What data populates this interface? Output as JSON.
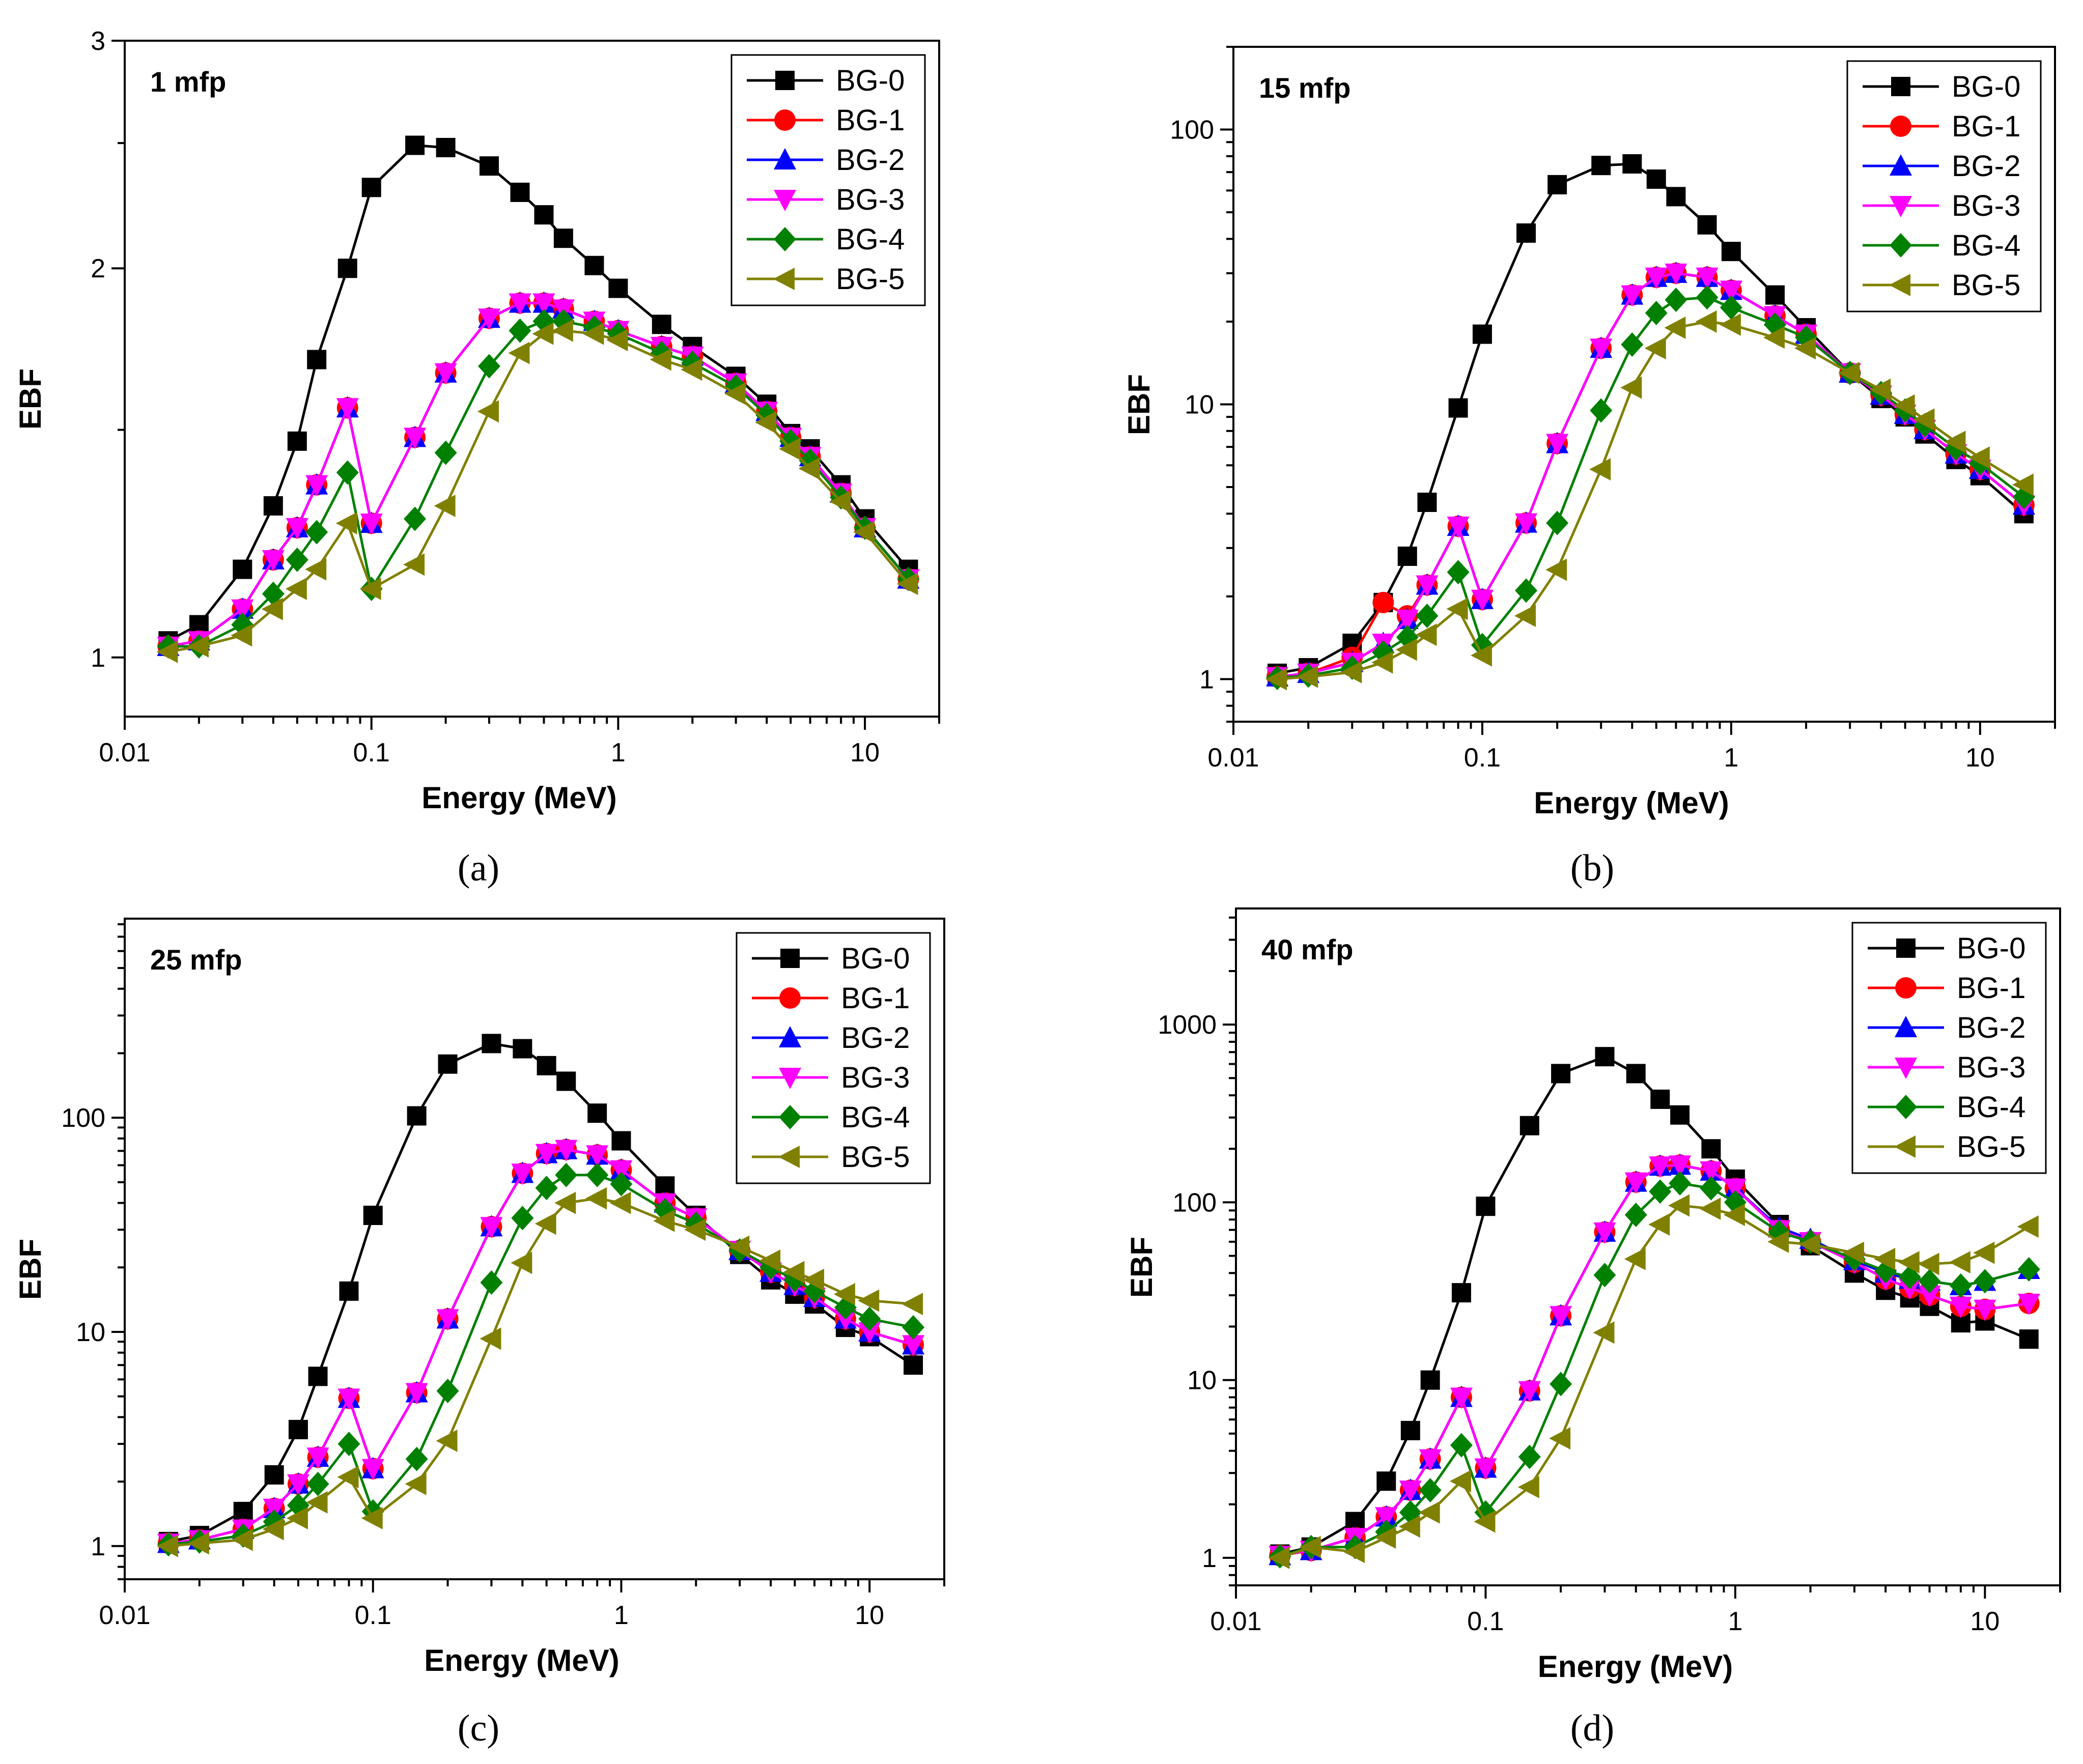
{
  "legend_labels": [
    "BG-0",
    "BG-1",
    "BG-2",
    "BG-3",
    "BG-4",
    "BG-5"
  ],
  "colors": {
    "BG-0": "#000000",
    "BG-1": "#ff0000",
    "BG-2": "#0000ff",
    "BG-3": "#ff00ff",
    "BG-4": "#008000",
    "BG-5": "#808000"
  },
  "markers": {
    "BG-0": "square",
    "BG-1": "circle",
    "BG-2": "triangle-up",
    "BG-3": "triangle-down",
    "BG-4": "diamond",
    "BG-5": "triangle-left"
  },
  "energies": [
    0.015,
    0.02,
    0.03,
    0.04,
    0.05,
    0.06,
    0.08,
    0.1,
    0.15,
    0.2,
    0.3,
    0.4,
    0.5,
    0.6,
    0.8,
    1,
    1.5,
    2,
    3,
    4,
    5,
    6,
    8,
    10,
    15
  ],
  "chart_data": [
    {
      "type": "line",
      "panel_label": "1 mfp",
      "caption": "(a)",
      "xlabel": "Energy (MeV)",
      "ylabel": "EBF",
      "xscale": "log",
      "yscale": "log",
      "xlim": [
        0.01,
        20
      ],
      "ylim": [
        0.9,
        3
      ],
      "xticks": [
        "0.01",
        "0.1",
        "1",
        "10"
      ],
      "yticks": [
        {
          "v": 1,
          "label": "1"
        },
        {
          "v": 2,
          "label": "2"
        },
        {
          "v": 3,
          "label": "3"
        }
      ],
      "legend_position": "top-right",
      "series": [
        {
          "name": "BG-0",
          "values": [
            1.03,
            1.06,
            1.17,
            1.31,
            1.47,
            1.7,
            2.0,
            2.31,
            2.49,
            2.48,
            2.4,
            2.29,
            2.2,
            2.11,
            2.01,
            1.93,
            1.81,
            1.74,
            1.65,
            1.57,
            1.49,
            1.45,
            1.36,
            1.28,
            1.17
          ]
        },
        {
          "name": "BG-1",
          "values": [
            1.02,
            1.03,
            1.09,
            1.19,
            1.26,
            1.36,
            1.56,
            1.27,
            1.48,
            1.66,
            1.83,
            1.88,
            1.88,
            1.86,
            1.82,
            1.79,
            1.74,
            1.71,
            1.63,
            1.55,
            1.48,
            1.43,
            1.34,
            1.26,
            1.15
          ]
        },
        {
          "name": "BG-2",
          "values": [
            1.02,
            1.03,
            1.09,
            1.19,
            1.26,
            1.36,
            1.56,
            1.27,
            1.48,
            1.66,
            1.83,
            1.88,
            1.88,
            1.86,
            1.82,
            1.79,
            1.74,
            1.71,
            1.63,
            1.55,
            1.48,
            1.43,
            1.34,
            1.26,
            1.15
          ]
        },
        {
          "name": "BG-3",
          "values": [
            1.02,
            1.03,
            1.09,
            1.19,
            1.26,
            1.36,
            1.56,
            1.27,
            1.48,
            1.66,
            1.83,
            1.88,
            1.88,
            1.86,
            1.82,
            1.79,
            1.74,
            1.71,
            1.63,
            1.55,
            1.48,
            1.43,
            1.34,
            1.26,
            1.15
          ]
        },
        {
          "name": "BG-4",
          "values": [
            1.02,
            1.02,
            1.06,
            1.12,
            1.19,
            1.25,
            1.39,
            1.13,
            1.28,
            1.44,
            1.68,
            1.79,
            1.82,
            1.82,
            1.8,
            1.78,
            1.72,
            1.69,
            1.62,
            1.54,
            1.47,
            1.42,
            1.33,
            1.26,
            1.15
          ]
        },
        {
          "name": "BG-5",
          "values": [
            1.01,
            1.02,
            1.04,
            1.09,
            1.13,
            1.17,
            1.27,
            1.13,
            1.18,
            1.31,
            1.55,
            1.72,
            1.78,
            1.79,
            1.78,
            1.76,
            1.7,
            1.67,
            1.6,
            1.52,
            1.45,
            1.4,
            1.32,
            1.25,
            1.14
          ]
        }
      ]
    },
    {
      "type": "line",
      "panel_label": "15 mfp",
      "caption": "(b)",
      "xlabel": "Energy (MeV)",
      "ylabel": "EBF",
      "xscale": "log",
      "yscale": "log",
      "xlim": [
        0.01,
        20
      ],
      "ylim": [
        0.7,
        200
      ],
      "xticks": [
        "0.01",
        "0.1",
        "1",
        "10"
      ],
      "yticks": [
        {
          "v": 1,
          "label": "1"
        },
        {
          "v": 10,
          "label": "10"
        },
        {
          "v": 100,
          "label": "100"
        }
      ],
      "legend_position": "top-right",
      "series": [
        {
          "name": "BG-0",
          "values": [
            1.05,
            1.1,
            1.35,
            1.9,
            2.8,
            4.4,
            9.7,
            18,
            42,
            63,
            74,
            75,
            66,
            57,
            45,
            36,
            25,
            19,
            13,
            10.5,
            9,
            7.8,
            6.3,
            5.5,
            4.0
          ]
        },
        {
          "name": "BG-1",
          "values": [
            1.02,
            1.05,
            1.2,
            1.9,
            1.7,
            2.2,
            3.6,
            1.95,
            3.7,
            7.2,
            16,
            25,
            29,
            30,
            29,
            26,
            21,
            18,
            13,
            10.8,
            9.2,
            8.1,
            6.6,
            5.8,
            4.3
          ]
        },
        {
          "name": "BG-2",
          "values": [
            1.02,
            1.05,
            1.15,
            1.35,
            1.65,
            2.2,
            3.6,
            1.95,
            3.7,
            7.2,
            16,
            25,
            29,
            30,
            29,
            26,
            21,
            18,
            13,
            10.8,
            9.2,
            8.1,
            6.6,
            5.8,
            4.3
          ]
        },
        {
          "name": "BG-3",
          "values": [
            1.02,
            1.05,
            1.15,
            1.35,
            1.65,
            2.2,
            3.6,
            1.95,
            3.7,
            7.2,
            16,
            25,
            29,
            30,
            29,
            26,
            21,
            18,
            13,
            10.8,
            9.2,
            8.1,
            6.6,
            5.8,
            4.3
          ]
        },
        {
          "name": "BG-4",
          "values": [
            1.01,
            1.03,
            1.1,
            1.25,
            1.42,
            1.7,
            2.45,
            1.33,
            2.1,
            3.7,
            9.5,
            16.5,
            21.5,
            24,
            24.5,
            22.5,
            19.5,
            17.5,
            13,
            11,
            9.5,
            8.4,
            6.9,
            6.1,
            4.6
          ]
        },
        {
          "name": "BG-5",
          "values": [
            1.0,
            1.02,
            1.06,
            1.15,
            1.28,
            1.45,
            1.8,
            1.22,
            1.7,
            2.5,
            5.8,
            11.5,
            16,
            19,
            20,
            19.5,
            17.5,
            16,
            13,
            11.3,
            9.9,
            8.8,
            7.3,
            6.4,
            5.1
          ]
        }
      ]
    },
    {
      "type": "line",
      "panel_label": "25 mfp",
      "caption": "(c)",
      "xlabel": "Energy (MeV)",
      "ylabel": "EBF",
      "xscale": "log",
      "yscale": "log",
      "xlim": [
        0.01,
        20
      ],
      "ylim": [
        0.7,
        850
      ],
      "xticks": [
        "0.01",
        "0.1",
        "1",
        "10"
      ],
      "yticks": [
        {
          "v": 1,
          "label": "1"
        },
        {
          "v": 10,
          "label": "10"
        },
        {
          "v": 100,
          "label": "100"
        }
      ],
      "legend_position": "top-right",
      "series": [
        {
          "name": "BG-0",
          "values": [
            1.05,
            1.12,
            1.45,
            2.15,
            3.5,
            6.2,
            15.5,
            35,
            102,
            178,
            222,
            210,
            175,
            148,
            105,
            78,
            48,
            35,
            23,
            17.5,
            15,
            13.5,
            10.5,
            9.5,
            7.0
          ]
        },
        {
          "name": "BG-1",
          "values": [
            1.03,
            1.07,
            1.2,
            1.5,
            1.95,
            2.6,
            4.9,
            2.3,
            5.2,
            11.5,
            31,
            55,
            68,
            71,
            67,
            57,
            40,
            34,
            24,
            19,
            16.5,
            14.5,
            11.5,
            10,
            8.7
          ]
        },
        {
          "name": "BG-2",
          "values": [
            1.03,
            1.07,
            1.2,
            1.5,
            1.95,
            2.6,
            4.9,
            2.3,
            5.2,
            11.5,
            31,
            55,
            68,
            71,
            67,
            57,
            40,
            34,
            24,
            19,
            16.5,
            14.5,
            11.5,
            10,
            8.7
          ]
        },
        {
          "name": "BG-3",
          "values": [
            1.03,
            1.07,
            1.2,
            1.5,
            1.95,
            2.6,
            4.9,
            2.3,
            5.2,
            11.5,
            31,
            55,
            68,
            71,
            67,
            57,
            40,
            34,
            24,
            19,
            16.5,
            14.5,
            11.5,
            10,
            8.7
          ]
        },
        {
          "name": "BG-4",
          "values": [
            1.02,
            1.05,
            1.12,
            1.3,
            1.55,
            1.95,
            3.0,
            1.45,
            2.55,
            5.3,
            17,
            34,
            47,
            54,
            54,
            49,
            37,
            32,
            24,
            20,
            17.5,
            15.5,
            13,
            11.5,
            10.5
          ]
        },
        {
          "name": "BG-5",
          "values": [
            1.0,
            1.03,
            1.07,
            1.2,
            1.35,
            1.6,
            2.1,
            1.35,
            1.95,
            3.1,
            9.3,
            21,
            32,
            40,
            42,
            40,
            33,
            30,
            25,
            21.5,
            19,
            17.5,
            15,
            14,
            13.5
          ]
        }
      ]
    },
    {
      "type": "line",
      "panel_label": "40 mfp",
      "caption": "(d)",
      "xlabel": "Energy (MeV)",
      "ylabel": "EBF",
      "xscale": "log",
      "yscale": "log",
      "xlim": [
        0.01,
        20
      ],
      "ylim": [
        0.7,
        4500
      ],
      "xticks": [
        "0.01",
        "0.1",
        "1",
        "10"
      ],
      "yticks": [
        {
          "v": 1,
          "label": "1"
        },
        {
          "v": 10,
          "label": "10"
        },
        {
          "v": 100,
          "label": "100"
        },
        {
          "v": 1000,
          "label": "1000"
        }
      ],
      "legend_position": "top-right",
      "series": [
        {
          "name": "BG-0",
          "values": [
            1.05,
            1.15,
            1.6,
            2.7,
            5.2,
            10,
            31,
            95,
            270,
            530,
            660,
            530,
            380,
            310,
            200,
            135,
            75,
            57,
            40,
            32,
            29,
            26,
            21,
            21.5,
            17
          ]
        },
        {
          "name": "BG-1",
          "values": [
            1.03,
            1.1,
            1.3,
            1.7,
            2.4,
            3.6,
            8.0,
            3.2,
            8.7,
            23,
            68,
            130,
            160,
            162,
            150,
            120,
            70,
            60,
            46,
            37,
            33,
            30,
            26,
            25,
            27
          ]
        },
        {
          "name": "BG-2",
          "values": [
            1.03,
            1.1,
            1.3,
            1.7,
            2.4,
            3.6,
            8.0,
            3.2,
            8.7,
            23,
            68,
            130,
            160,
            162,
            150,
            120,
            72,
            62,
            47,
            40,
            37,
            36,
            34,
            36,
            42
          ]
        },
        {
          "name": "BG-3",
          "values": [
            1.03,
            1.1,
            1.3,
            1.7,
            2.4,
            3.6,
            8.0,
            3.2,
            8.7,
            23,
            68,
            130,
            160,
            162,
            150,
            120,
            70,
            60,
            46,
            37,
            33,
            30,
            26,
            25,
            27
          ]
        },
        {
          "name": "BG-4",
          "values": [
            1.02,
            1.15,
            1.15,
            1.4,
            1.8,
            2.4,
            4.3,
            1.8,
            3.7,
            9.5,
            39,
            85,
            115,
            128,
            120,
            100,
            68,
            60,
            48,
            41,
            38,
            36,
            34,
            36,
            42
          ]
        },
        {
          "name": "BG-5",
          "values": [
            1.0,
            1.15,
            1.08,
            1.3,
            1.5,
            1.8,
            2.7,
            1.6,
            2.5,
            4.7,
            18.5,
            48,
            75,
            96,
            92,
            85,
            60,
            58,
            52,
            48,
            46,
            45,
            46,
            52,
            73
          ]
        }
      ]
    }
  ]
}
